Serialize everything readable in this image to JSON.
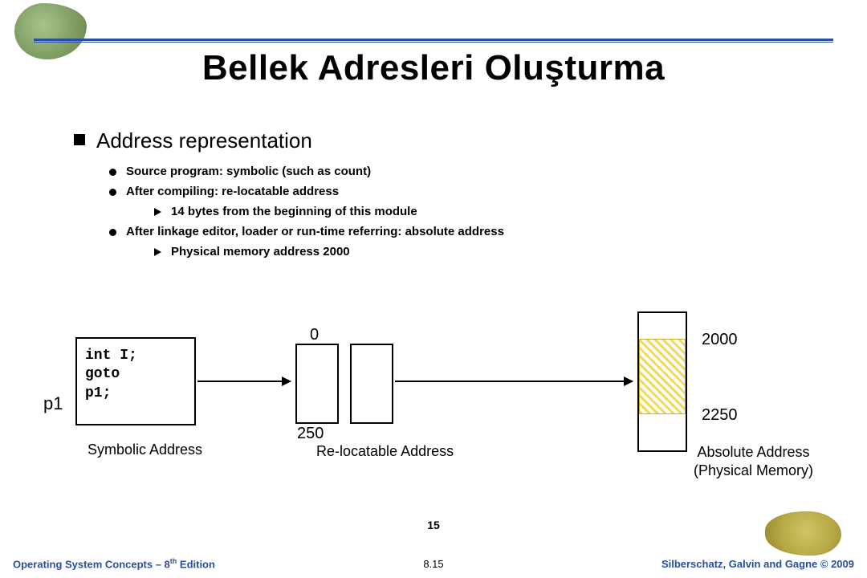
{
  "colors": {
    "rule": "#2a4ea0",
    "text": "#000000",
    "hatch_fg": "#f1d95a",
    "hatch_border": "#c9b23a",
    "footer": "#2a4ea0"
  },
  "title": "Bellek Adresleri Oluşturma",
  "bullets": {
    "lvl1": "Address representation",
    "items": [
      {
        "text": "Source program: symbolic (such as count)"
      },
      {
        "text": "After compiling: re-locatable address",
        "sub": "14 bytes from the beginning of this module"
      },
      {
        "text": "After linkage editor, loader or run-time referring: absolute address",
        "sub": "Physical memory address 2000"
      }
    ]
  },
  "diagram": {
    "symbolic": {
      "code_l1": "int  I;",
      "code_l2": "goto",
      "code_l3": "p1;",
      "p1_label": "p1",
      "caption": "Symbolic Address"
    },
    "relocatable": {
      "top_value": "0",
      "bottom_value": "250",
      "caption": "Re-locatable Address"
    },
    "absolute": {
      "top_value": "2000",
      "bottom_value": "2250",
      "caption_l1": "Absolute Address",
      "caption_l2": "(Physical Memory)",
      "hatch_range": [
        2000,
        2250
      ]
    }
  },
  "footer": {
    "left_prefix": "Operating System Concepts – 8",
    "left_suffix": " Edition",
    "left_sup": "th",
    "page_small": "15",
    "page": "8.15",
    "right": "Silberschatz, Galvin and Gagne © 2009"
  }
}
